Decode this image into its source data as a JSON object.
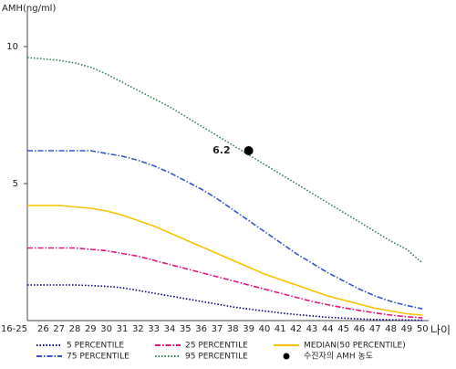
{
  "chart_data": {
    "type": "line",
    "y_label": "AMH(ng/ml)",
    "x_label": "나이",
    "categories": [
      "16-25",
      "26",
      "27",
      "28",
      "29",
      "30",
      "31",
      "32",
      "33",
      "34",
      "35",
      "36",
      "37",
      "38",
      "39",
      "40",
      "41",
      "42",
      "43",
      "44",
      "45",
      "46",
      "47",
      "48",
      "49",
      "50"
    ],
    "ylim": [
      0,
      11
    ],
    "yticks": [
      5,
      10
    ],
    "grid": false,
    "series": [
      {
        "name": "5 PERCENTILE",
        "color": "#000080",
        "style": "dotted",
        "values": [
          1.3,
          1.3,
          1.3,
          1.3,
          1.28,
          1.25,
          1.2,
          1.1,
          1.0,
          0.9,
          0.8,
          0.7,
          0.6,
          0.5,
          0.42,
          0.35,
          0.28,
          0.22,
          0.17,
          0.12,
          0.09,
          0.06,
          0.04,
          0.03,
          0.02,
          0.01
        ]
      },
      {
        "name": "25 PERCENTILE",
        "color": "#e0147f",
        "style": "dashdot",
        "values": [
          2.65,
          2.65,
          2.65,
          2.65,
          2.6,
          2.55,
          2.45,
          2.35,
          2.2,
          2.05,
          1.9,
          1.75,
          1.6,
          1.45,
          1.3,
          1.15,
          1.0,
          0.85,
          0.7,
          0.58,
          0.47,
          0.37,
          0.28,
          0.2,
          0.14,
          0.1
        ]
      },
      {
        "name": "MEDIAN(50 PERCENTILE)",
        "color": "#f5c400",
        "style": "solid",
        "values": [
          4.2,
          4.2,
          4.2,
          4.15,
          4.1,
          4.0,
          3.85,
          3.65,
          3.45,
          3.2,
          2.95,
          2.7,
          2.45,
          2.2,
          1.95,
          1.7,
          1.5,
          1.3,
          1.1,
          0.9,
          0.75,
          0.6,
          0.45,
          0.35,
          0.25,
          0.2
        ]
      },
      {
        "name": "75 PERCENTILE",
        "color": "#3355cc",
        "style": "dashdot",
        "values": [
          6.2,
          6.2,
          6.2,
          6.2,
          6.2,
          6.1,
          6.0,
          5.85,
          5.65,
          5.4,
          5.1,
          4.8,
          4.45,
          4.05,
          3.65,
          3.25,
          2.85,
          2.45,
          2.1,
          1.75,
          1.45,
          1.15,
          0.9,
          0.7,
          0.55,
          0.43
        ]
      },
      {
        "name": "95 PERCENTILE",
        "color": "#2e7d4f",
        "style": "dotted",
        "values": [
          9.6,
          9.55,
          9.5,
          9.4,
          9.25,
          9.0,
          8.7,
          8.4,
          8.1,
          7.8,
          7.45,
          7.1,
          6.75,
          6.4,
          6.05,
          5.7,
          5.35,
          5.0,
          4.65,
          4.3,
          3.95,
          3.6,
          3.25,
          2.9,
          2.6,
          2.1
        ]
      }
    ],
    "marker": {
      "name": "수진자의 AMH 농도",
      "x": "39",
      "value": 6.2,
      "color": "#000000"
    }
  }
}
